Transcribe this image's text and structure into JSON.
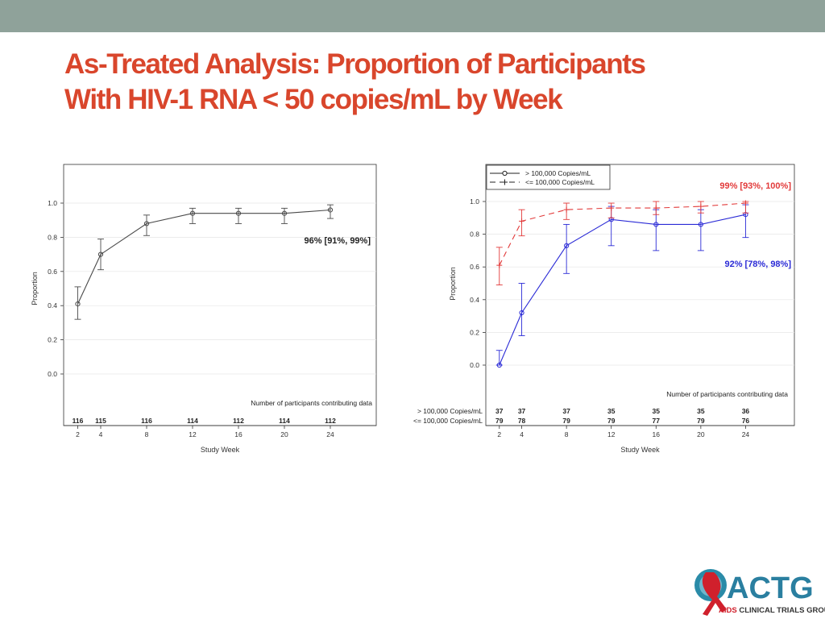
{
  "slide": {
    "title_line1": "As-Treated Analysis: Proportion of Participants",
    "title_line2": "With HIV-1 RNA < 50 copies/mL by Week"
  },
  "colors": {
    "title": "#d9462c",
    "topbar": "#8fa29a",
    "overall_series": "#4a4a4a",
    "high_vl_series": "#2b2bd6",
    "low_vl_series": "#e23a3a"
  },
  "chart_data": [
    {
      "type": "line",
      "xlabel": "Study Week",
      "ylabel": "Proportion",
      "x": [
        2,
        4,
        8,
        12,
        16,
        20,
        24
      ],
      "x_ticks": [
        "2",
        "4",
        "8",
        "12",
        "16",
        "20",
        "24"
      ],
      "y_ticks": [
        "0.0",
        "0.2",
        "0.4",
        "0.6",
        "0.8",
        "1.0"
      ],
      "xlim": [
        0,
        28
      ],
      "ylim": [
        0,
        1.0
      ],
      "grid": true,
      "series": [
        {
          "values": [
            0.41,
            0.7,
            0.88,
            0.94,
            0.94,
            0.94,
            0.96
          ],
          "lower": [
            0.32,
            0.61,
            0.81,
            0.88,
            0.88,
            0.88,
            0.91
          ],
          "upper": [
            0.51,
            0.79,
            0.93,
            0.97,
            0.97,
            0.97,
            0.99
          ],
          "color": "#4a4a4a",
          "line_style": "solid",
          "marker": "circle"
        }
      ],
      "annotation": "96% [91%, 99%]",
      "counts_label": "Number of participants contributing data",
      "counts": [
        {
          "label": "",
          "values": [
            "116",
            "115",
            "116",
            "114",
            "112",
            "114",
            "112"
          ]
        }
      ]
    },
    {
      "type": "line",
      "xlabel": "Study Week",
      "ylabel": "Proportion",
      "x": [
        2,
        4,
        8,
        12,
        16,
        20,
        24
      ],
      "x_ticks": [
        "2",
        "4",
        "8",
        "12",
        "16",
        "20",
        "24"
      ],
      "y_ticks": [
        "0.0",
        "0.2",
        "0.4",
        "0.6",
        "0.8",
        "1.0"
      ],
      "xlim": [
        0,
        28
      ],
      "ylim": [
        0,
        1.0
      ],
      "grid": true,
      "legend_position": "top-left",
      "series": [
        {
          "name": "> 100,000 Copies/mL",
          "values": [
            0.0,
            0.32,
            0.73,
            0.89,
            0.86,
            0.86,
            0.92
          ],
          "lower": [
            0.0,
            0.18,
            0.56,
            0.73,
            0.7,
            0.7,
            0.78
          ],
          "upper": [
            0.09,
            0.5,
            0.86,
            0.97,
            0.95,
            0.95,
            0.98
          ],
          "color": "#2b2bd6",
          "line_style": "solid",
          "marker": "circle"
        },
        {
          "name": "<= 100,000 Copies/mL",
          "values": [
            0.61,
            0.88,
            0.95,
            0.96,
            0.96,
            0.97,
            0.99
          ],
          "lower": [
            0.49,
            0.79,
            0.89,
            0.9,
            0.92,
            0.93,
            0.93
          ],
          "upper": [
            0.72,
            0.95,
            0.99,
            0.99,
            1.0,
            1.0,
            1.0
          ],
          "color": "#e23a3a",
          "line_style": "dashed",
          "marker": "plus"
        }
      ],
      "annotations": [
        {
          "text": "99% [93%, 100%]",
          "color": "#e23a3a"
        },
        {
          "text": "92% [78%, 98%]",
          "color": "#2b2bd6"
        }
      ],
      "counts_label": "Number of participants contributing data",
      "counts": [
        {
          "label": "> 100,000 Copies/mL",
          "values": [
            "37",
            "37",
            "37",
            "35",
            "35",
            "35",
            "36"
          ]
        },
        {
          "label": "<= 100,000 Copies/mL",
          "values": [
            "79",
            "78",
            "79",
            "79",
            "77",
            "79",
            "76"
          ]
        }
      ]
    }
  ],
  "logo": {
    "wordmark": "ACTG",
    "tagline_bold": "AIDS",
    "tagline_rest": " CLINICAL TRIALS GROUP"
  }
}
